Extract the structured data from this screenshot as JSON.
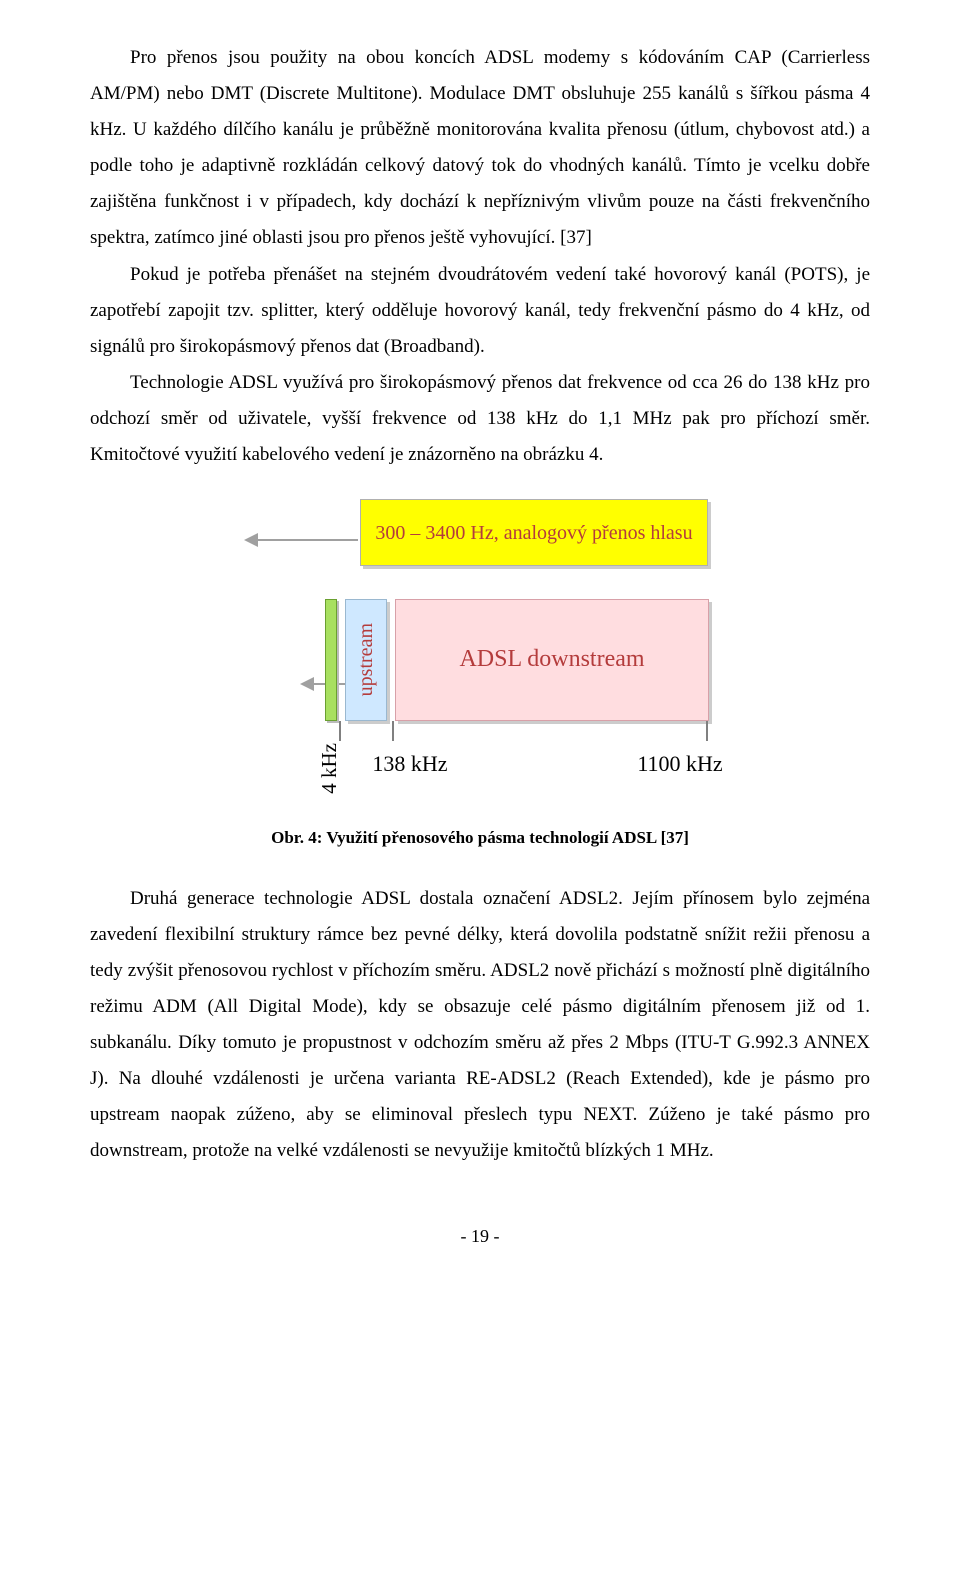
{
  "p1": "Pro přenos jsou použity na obou koncích ADSL modemy s kódováním CAP (Carrierless AM/PM) nebo DMT (Discrete Multitone). Modulace DMT obsluhuje 255 kanálů s šířkou pásma 4 kHz. U každého dílčího kanálu je průběžně monitorována kvalita přenosu (útlum, chybovost atd.) a podle toho je adaptivně rozkládán celkový datový tok do vhodných kanálů. Tímto je vcelku dobře zajištěna funkčnost i v případech, kdy dochází k nepříznivým vlivům pouze na části frekvenčního spektra, zatímco jiné oblasti jsou pro přenos ještě vyhovující. [37]",
  "p2": "Pokud je potřeba přenášet na stejném dvoudrátovém vedení také hovorový kanál (POTS), je zapotřebí zapojit tzv. splitter, který odděluje hovorový kanál, tedy frekvenční pásmo do 4 kHz, od signálů pro širokopásmový přenos dat (Broadband).",
  "p3": "Technologie ADSL využívá pro širokopásmový přenos dat frekvence od cca 26 do 138 kHz pro odchozí směr od uživatele, vyšší frekvence od 138 kHz do 1,1 MHz pak pro příchozí směr. Kmitočtové využití kabelového vedení je znázorněno na obrázku 4.",
  "fig": {
    "yellow_label": "300 – 3400 Hz, analogový přenos hlasu",
    "upstream_label": "upstream",
    "downstream_label": "ADSL downstream",
    "tick_4khz": "4 kHz",
    "tick_138": "138 kHz",
    "tick_1100": "1100 kHz",
    "colors": {
      "yellow": "#ffff00",
      "upstream_fill": "#cfe8ff",
      "downstream_fill": "#ffdde0",
      "green_bar": "#a8e060",
      "label_text": "#b43c3c",
      "shadow": "#cccccc"
    },
    "caption": "Obr. 4: Využití přenosového pásma technologií ADSL [37]"
  },
  "p4": "Druhá generace technologie ADSL dostala označení ADSL2. Jejím přínosem bylo zejména zavedení flexibilní struktury rámce bez pevné délky, která dovolila podstatně snížit režii přenosu a tedy zvýšit přenosovou rychlost v příchozím směru. ADSL2 nově přichází s možností plně digitálního režimu ADM (All Digital Mode), kdy se obsazuje celé pásmo digitálním přenosem již od 1. subkanálu. Díky tomuto je propustnost v odchozím směru až přes 2 Mbps (ITU-T G.992.3 ANNEX J). Na dlouhé vzdálenosti je určena varianta RE-ADSL2 (Reach Extended), kde je pásmo pro upstream naopak zúženo, aby se eliminoval přeslech typu NEXT. Zúženo je také pásmo pro downstream, protože na velké vzdálenosti se nevyužije kmitočtů blízkých 1 MHz.",
  "page_number": "- 19 -"
}
